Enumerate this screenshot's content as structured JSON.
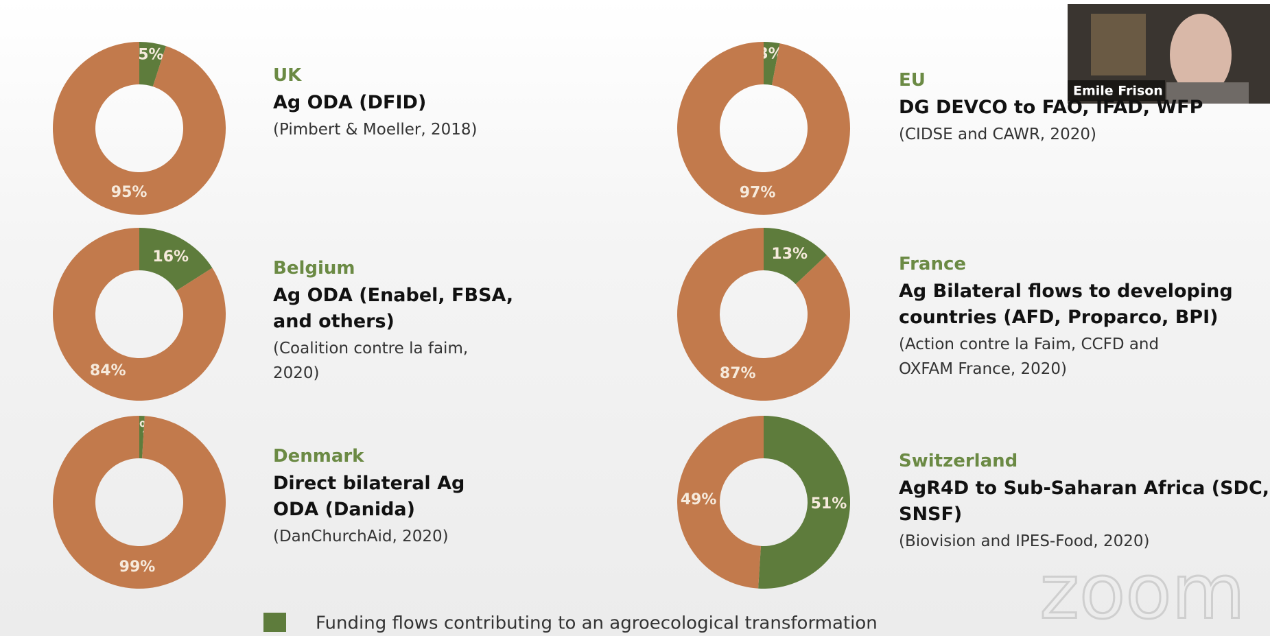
{
  "chart_data": [
    {
      "type": "pie",
      "country": "UK",
      "title": [
        "Ag ODA (DFID)"
      ],
      "source": [
        "(Pimbert & Moeller, 2018)"
      ],
      "values": [
        5,
        95
      ],
      "value_labels": [
        "5%",
        "95%"
      ],
      "colors": [
        "#5e7c3c",
        "#c27a4c"
      ]
    },
    {
      "type": "pie",
      "country": "EU",
      "title": [
        "DG DEVCO to FAO, IFAD, WFP"
      ],
      "source": [
        "(CIDSE and CAWR, 2020)"
      ],
      "values": [
        3,
        97
      ],
      "value_labels": [
        "3%",
        "97%"
      ],
      "colors": [
        "#5e7c3c",
        "#c27a4c"
      ]
    },
    {
      "type": "pie",
      "country": "Belgium",
      "title": [
        "Ag ODA (Enabel, FBSA,",
        "and others)"
      ],
      "source": [
        "(Coalition contre la faim,",
        "2020)"
      ],
      "values": [
        16,
        84
      ],
      "value_labels": [
        "16%",
        "84%"
      ],
      "colors": [
        "#5e7c3c",
        "#c27a4c"
      ]
    },
    {
      "type": "pie",
      "country": "France",
      "title": [
        "Ag Bilateral flows to developing",
        "countries (AFD, Proparco, BPI)"
      ],
      "source": [
        "(Action contre la Faim, CCFD and",
        "OXFAM France, 2020)"
      ],
      "values": [
        13,
        87
      ],
      "value_labels": [
        "13%",
        "87%"
      ],
      "colors": [
        "#5e7c3c",
        "#c27a4c"
      ]
    },
    {
      "type": "pie",
      "country": "Denmark",
      "title": [
        "Direct bilateral Ag",
        "ODA (Danida)"
      ],
      "source": [
        "(DanChurchAid, 2020)"
      ],
      "values": [
        1,
        99
      ],
      "value_labels": [
        "1%",
        "99%"
      ],
      "colors": [
        "#5e7c3c",
        "#c27a4c"
      ]
    },
    {
      "type": "pie",
      "country": "Switzerland",
      "title": [
        "AgR4D to Sub-Saharan Africa (SDC,",
        "SNSF)"
      ],
      "source": [
        "(Biovision and IPES-Food, 2020)"
      ],
      "values": [
        51,
        49
      ],
      "value_labels": [
        "51%",
        "49%"
      ],
      "colors": [
        "#5e7c3c",
        "#c27a4c"
      ]
    }
  ],
  "legend": {
    "label": "Funding flows contributing to an agroecological transformation",
    "color": "#5e7c3c"
  },
  "speaker": "Emile Frison",
  "watermark": "zoom"
}
